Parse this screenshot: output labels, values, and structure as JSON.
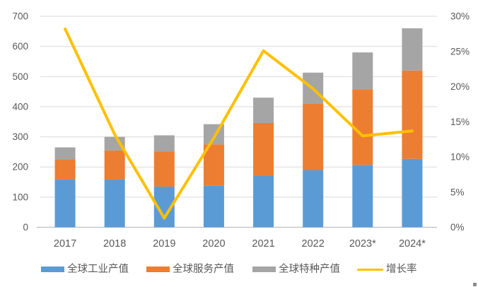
{
  "chart_data": {
    "type": "bar",
    "subtype": "stacked-column-with-line-overlay",
    "title": "",
    "categories": [
      "2017",
      "2018",
      "2019",
      "2020",
      "2021",
      "2022",
      "2023*",
      "2024*"
    ],
    "series": [
      {
        "name": "全球工业产值",
        "kind": "bar",
        "color": "#5B9BD5",
        "values": [
          160,
          160,
          135,
          138,
          170,
          190,
          207,
          227
        ]
      },
      {
        "name": "全球服务产值",
        "kind": "bar",
        "color": "#ED7D31",
        "values": [
          65,
          95,
          116,
          137,
          176,
          221,
          251,
          293
        ]
      },
      {
        "name": "全球特种产值",
        "kind": "bar",
        "color": "#A5A5A5",
        "values": [
          40,
          45,
          54,
          67,
          84,
          102,
          122,
          140
        ]
      },
      {
        "name": "增长率",
        "kind": "line",
        "axis": "right",
        "color": "#FFC000",
        "values": [
          28.2,
          13.2,
          1.3,
          12.7,
          25.1,
          19.7,
          13.0,
          13.7
        ]
      }
    ],
    "stacked_totals": [
      265,
      300,
      305,
      342,
      430,
      513,
      580,
      660
    ],
    "left_axis": {
      "min": 0,
      "max": 700,
      "step": 100,
      "tick_labels": [
        "0",
        "100",
        "200",
        "300",
        "400",
        "500",
        "600",
        "700"
      ]
    },
    "right_axis": {
      "min": 0,
      "max": 30,
      "step": 5,
      "tick_labels": [
        "0%",
        "5%",
        "10%",
        "15%",
        "20%",
        "25%",
        "30%"
      ]
    },
    "grid": true,
    "legend_position": "bottom"
  },
  "colors": {
    "axis_text": "#595959",
    "gridline": "#D9D9D9",
    "axis_line": "#BFBFBF",
    "background": "#FFFFFF"
  }
}
